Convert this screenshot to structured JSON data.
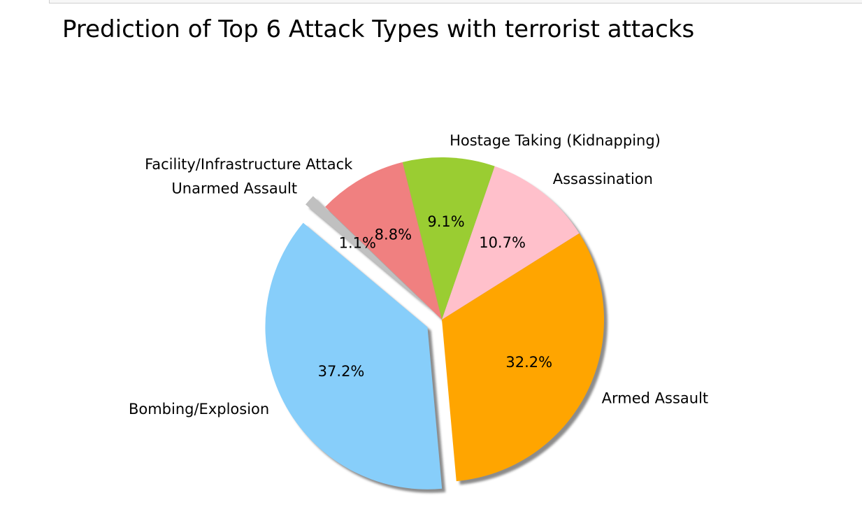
{
  "chart_data": {
    "type": "pie",
    "title": "Prediction of Top 6 Attack Types with terrorist attacks",
    "shadow": true,
    "start_angle_deg": 140,
    "slices": [
      {
        "label": "Bombing/Explosion",
        "value": 37.2,
        "pct_label": "37.2%",
        "color": "#87CEFA",
        "explode": 0.1
      },
      {
        "label": "Armed Assault",
        "value": 32.2,
        "pct_label": "32.2%",
        "color": "#FFA500",
        "explode": 0
      },
      {
        "label": "Assassination",
        "value": 10.7,
        "pct_label": "10.7%",
        "color": "#FFC0CB",
        "explode": 0
      },
      {
        "label": "Hostage Taking (Kidnapping)",
        "value": 9.1,
        "pct_label": "9.1%",
        "color": "#9ACD32",
        "explode": 0
      },
      {
        "label": "Facility/Infrastructure Attack",
        "value": 8.8,
        "pct_label": "8.8%",
        "color": "#F08080",
        "explode": 0
      },
      {
        "label": "Unarmed Assault",
        "value": 1.1,
        "pct_label": "1.1%",
        "color": "#C0C0C0",
        "explode": 0.1
      }
    ]
  }
}
